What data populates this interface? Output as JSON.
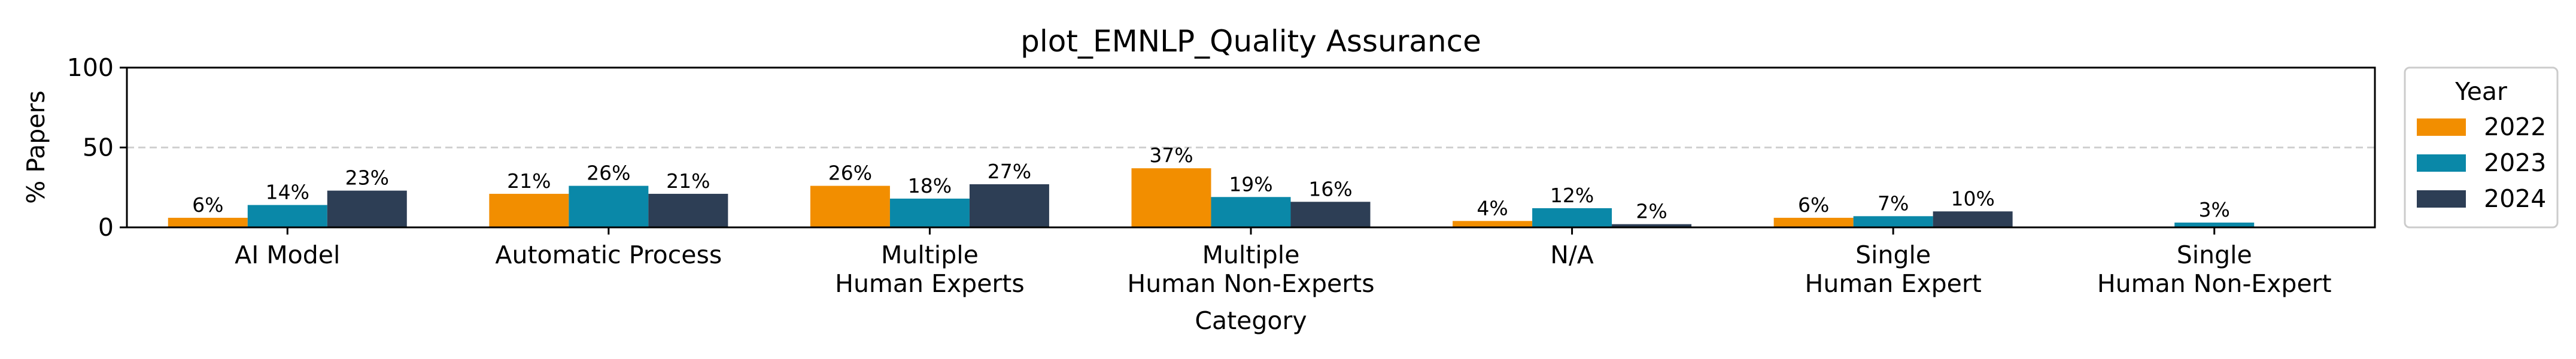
{
  "chart_data": {
    "type": "bar",
    "title": "plot_EMNLP_Quality Assurance",
    "xlabel": "Category",
    "ylabel": "% Papers",
    "ylim": [
      0,
      100
    ],
    "yticks": [
      0,
      50,
      100
    ],
    "grid": "horizontal dashed at 50",
    "categories": [
      [
        "AI Model"
      ],
      [
        "Automatic Process"
      ],
      [
        "Multiple",
        "Human Experts"
      ],
      [
        "Multiple",
        "Human Non-Experts"
      ],
      [
        "N/A"
      ],
      [
        "Single",
        "Human Expert"
      ],
      [
        "Single",
        "Human Non-Expert"
      ]
    ],
    "legend": {
      "title": "Year",
      "placement": "right, outside plot"
    },
    "series": [
      {
        "name": "2022",
        "color": "#F28E00",
        "values": [
          6,
          21,
          26,
          37,
          4,
          6,
          null
        ],
        "labels": [
          "6%",
          "21%",
          "26%",
          "37%",
          "4%",
          "6%",
          ""
        ]
      },
      {
        "name": "2023",
        "color": "#0A88A8",
        "values": [
          14,
          26,
          18,
          19,
          12,
          7,
          3
        ],
        "labels": [
          "14%",
          "26%",
          "18%",
          "19%",
          "12%",
          "7%",
          "3%"
        ]
      },
      {
        "name": "2024",
        "color": "#2D3E55",
        "values": [
          23,
          21,
          27,
          16,
          2,
          10,
          null
        ],
        "labels": [
          "23%",
          "21%",
          "27%",
          "16%",
          "2%",
          "10%",
          ""
        ]
      }
    ]
  }
}
